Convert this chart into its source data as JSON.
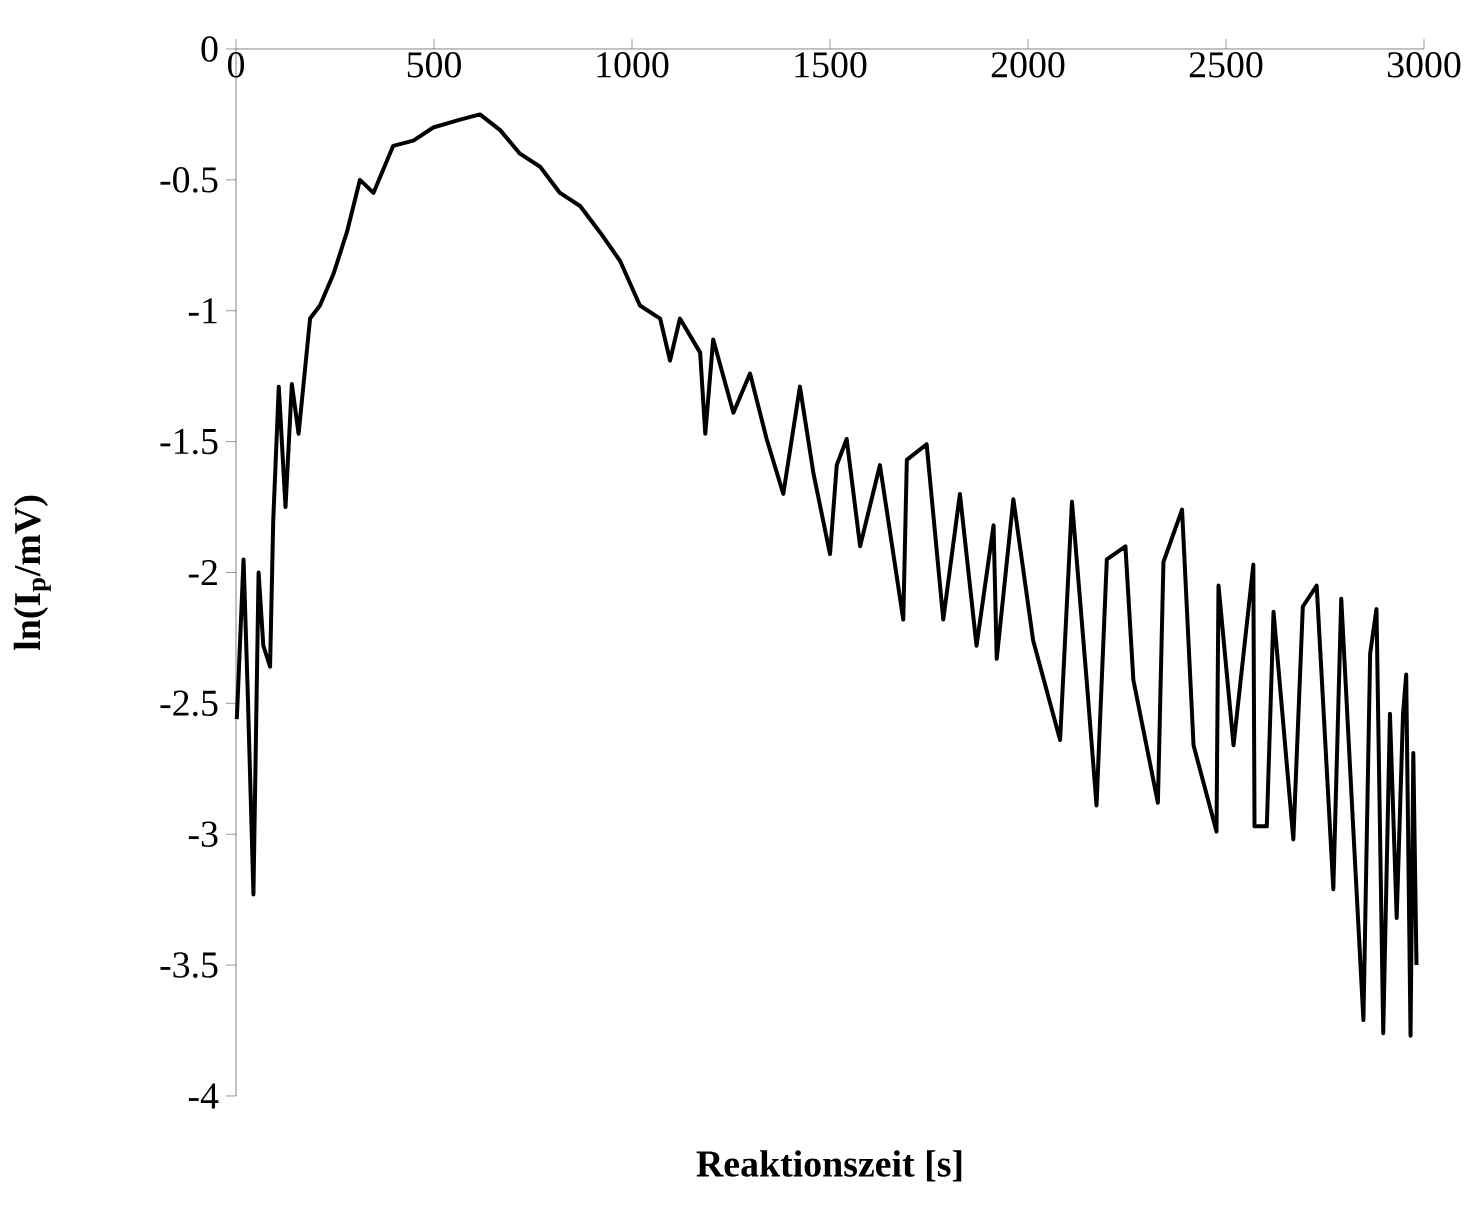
{
  "chart_data": {
    "type": "line",
    "xlabel": "Reaktionszeit [s]",
    "ylabel": "ln(I$_{p}$/mV)",
    "xlim": [
      0,
      3000
    ],
    "ylim": [
      -4,
      0
    ],
    "xticks": [
      0,
      500,
      1000,
      1500,
      2000,
      2500,
      3000
    ],
    "yticks": [
      -4,
      -3.5,
      -3,
      -2.5,
      -2,
      -1.5,
      -1,
      -0.5,
      0
    ],
    "grid": false,
    "x": [
      2,
      19,
      30,
      44,
      57,
      69,
      86,
      94,
      108,
      125,
      141,
      158,
      187,
      212,
      246,
      280,
      313,
      347,
      397,
      448,
      498,
      566,
      616,
      667,
      717,
      768,
      818,
      869,
      919,
      970,
      1020,
      1071,
      1096,
      1121,
      1172,
      1185,
      1205,
      1256,
      1298,
      1340,
      1382,
      1424,
      1458,
      1500,
      1517,
      1542,
      1576,
      1626,
      1685,
      1694,
      1744,
      1786,
      1828,
      1870,
      1913,
      1921,
      1963,
      2013,
      2081,
      2111,
      2148,
      2173,
      2199,
      2246,
      2266,
      2328,
      2342,
      2389,
      2418,
      2476,
      2481,
      2519,
      2569,
      2572,
      2603,
      2620,
      2670,
      2694,
      2729,
      2771,
      2791,
      2821,
      2847,
      2864,
      2880,
      2897,
      2914,
      2931,
      2947,
      2955,
      2966,
      2973,
      2981
    ],
    "series": [
      {
        "color": "#000000",
        "values": [
          -2.56,
          -1.95,
          -2.48,
          -3.23,
          -2.0,
          -2.28,
          -2.36,
          -1.8,
          -1.29,
          -1.75,
          -1.28,
          -1.47,
          -1.03,
          -0.98,
          -0.86,
          -0.7,
          -0.5,
          -0.55,
          -0.37,
          -0.35,
          -0.3,
          -0.27,
          -0.25,
          -0.31,
          -0.4,
          -0.45,
          -0.55,
          -0.6,
          -0.7,
          -0.81,
          -0.98,
          -1.03,
          -1.19,
          -1.03,
          -1.16,
          -1.47,
          -1.11,
          -1.39,
          -1.24,
          -1.49,
          -1.7,
          -1.29,
          -1.62,
          -1.93,
          -1.59,
          -1.49,
          -1.9,
          -1.59,
          -2.18,
          -1.57,
          -1.51,
          -2.18,
          -1.7,
          -2.28,
          -1.82,
          -2.33,
          -1.72,
          -2.26,
          -2.64,
          -1.73,
          -2.41,
          -2.89,
          -1.95,
          -1.9,
          -2.41,
          -2.88,
          -1.96,
          -1.76,
          -2.66,
          -2.99,
          -2.05,
          -2.66,
          -1.97,
          -2.97,
          -2.97,
          -2.15,
          -3.02,
          -2.13,
          -2.05,
          -3.21,
          -2.1,
          -2.97,
          -3.71,
          -2.31,
          -2.14,
          -3.76,
          -2.54,
          -3.32,
          -2.54,
          -2.39,
          -3.77,
          -2.69,
          -3.5
        ]
      }
    ]
  }
}
